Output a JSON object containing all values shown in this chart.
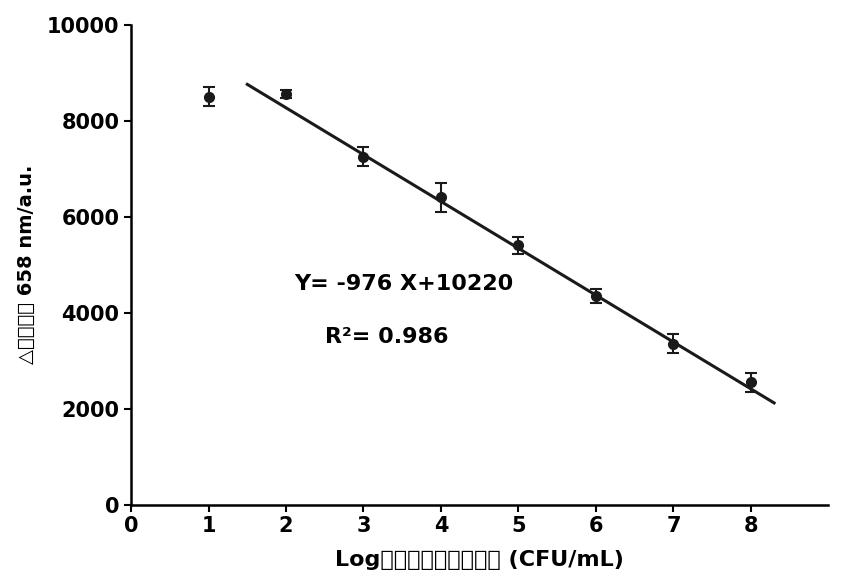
{
  "x_values": [
    1,
    2,
    3,
    4,
    5,
    6,
    7,
    8
  ],
  "y_values": [
    8500,
    8550,
    7250,
    6400,
    5400,
    4350,
    3350,
    2550
  ],
  "y_errors": [
    200,
    80,
    200,
    300,
    180,
    150,
    200,
    200
  ],
  "line_x": [
    1.5,
    8.3
  ],
  "slope": -976,
  "intercept": 10220,
  "r_squared": 0.986,
  "equation_text": "Y= -976 X+10220",
  "r2_text": "R²= 0.986",
  "xlabel_latin": "Log",
  "xlabel_cn": "金黄色葡萄球菌浓度",
  "xlabel_unit": " (CFU/mL)",
  "ylabel_cn": "△荬光强度",
  "ylabel_latin": " 658 nm/a.u.",
  "xlim": [
    0,
    9
  ],
  "ylim": [
    0,
    10000
  ],
  "xticks": [
    0,
    1,
    2,
    3,
    4,
    5,
    6,
    7,
    8
  ],
  "yticks": [
    0,
    2000,
    4000,
    6000,
    8000,
    10000
  ],
  "marker_color": "#1a1a1a",
  "line_color": "#1a1a1a",
  "background_color": "#ffffff"
}
